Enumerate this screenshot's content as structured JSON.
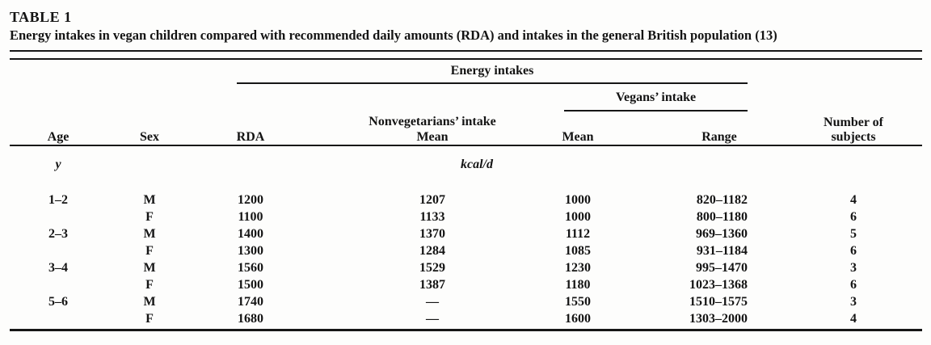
{
  "title": "TABLE 1",
  "caption": "Energy intakes in vegan children compared with recommended daily amounts (RDA) and intakes in the general British population (13)",
  "table": {
    "group_headers": {
      "energy_intakes": "Energy intakes",
      "vegans_intake": "Vegans’ intake",
      "nonvegetarians_intake": "Nonvegetarians’ intake"
    },
    "header": {
      "age": "Age",
      "sex": "Sex",
      "rda": "RDA",
      "nonveg_mean": "Mean",
      "vegan_mean": "Mean",
      "range": "Range",
      "nsub": [
        "Number of",
        "subjects"
      ]
    },
    "units": {
      "age_unit": "y",
      "energy_unit": "kcal/d"
    },
    "rows": [
      {
        "age": "1–2",
        "sex": "M",
        "rda": "1200",
        "nonveg_mean": "1207",
        "vegan_mean": "1000",
        "range": "820–1182",
        "n": "4"
      },
      {
        "age": "",
        "sex": "F",
        "rda": "1100",
        "nonveg_mean": "1133",
        "vegan_mean": "1000",
        "range": "800–1180",
        "n": "6"
      },
      {
        "age": "2–3",
        "sex": "M",
        "rda": "1400",
        "nonveg_mean": "1370",
        "vegan_mean": "1112",
        "range": "969–1360",
        "n": "5"
      },
      {
        "age": "",
        "sex": "F",
        "rda": "1300",
        "nonveg_mean": "1284",
        "vegan_mean": "1085",
        "range": "931–1184",
        "n": "6"
      },
      {
        "age": "3–4",
        "sex": "M",
        "rda": "1560",
        "nonveg_mean": "1529",
        "vegan_mean": "1230",
        "range": "995–1470",
        "n": "3"
      },
      {
        "age": "",
        "sex": "F",
        "rda": "1500",
        "nonveg_mean": "1387",
        "vegan_mean": "1180",
        "range": "1023–1368",
        "n": "6"
      },
      {
        "age": "5–6",
        "sex": "M",
        "rda": "1740",
        "nonveg_mean": "—",
        "vegan_mean": "1550",
        "range": "1510–1575",
        "n": "3"
      },
      {
        "age": "",
        "sex": "F",
        "rda": "1680",
        "nonveg_mean": "—",
        "vegan_mean": "1600",
        "range": "1303–2000",
        "n": "4"
      }
    ]
  },
  "colors": {
    "ink": "#141414",
    "paper": "#fdfdfc"
  }
}
